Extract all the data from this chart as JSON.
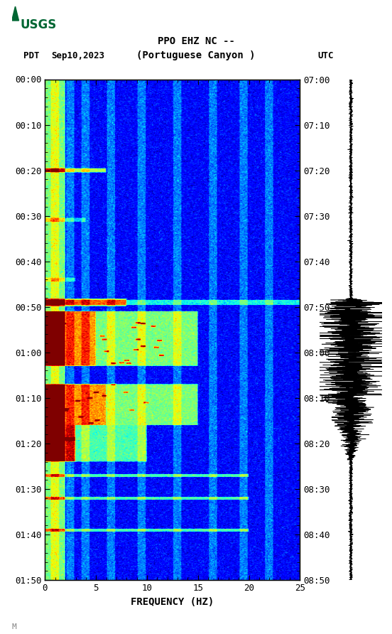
{
  "title_line1": "PPO EHZ NC --",
  "title_line2": "(Portuguese Canyon )",
  "label_pdt": "PDT",
  "label_date": "Sep10,2023",
  "label_utc": "UTC",
  "xlabel": "FREQUENCY (HZ)",
  "freq_min": 0,
  "freq_max": 25,
  "pdt_ticks": [
    "00:00",
    "00:10",
    "00:20",
    "00:30",
    "00:40",
    "00:50",
    "01:00",
    "01:10",
    "01:20",
    "01:30",
    "01:40",
    "01:50"
  ],
  "utc_ticks": [
    "07:00",
    "07:10",
    "07:20",
    "07:30",
    "07:40",
    "07:50",
    "08:00",
    "08:10",
    "08:20",
    "08:30",
    "08:40",
    "08:50"
  ],
  "minute_ticks": [
    0,
    10,
    20,
    30,
    40,
    50,
    60,
    70,
    80,
    90,
    100,
    110
  ],
  "total_minutes": 110,
  "background_color": "#ffffff",
  "usgs_logo_color": "#006633",
  "font_family": "monospace",
  "fig_width": 5.52,
  "fig_height": 8.92,
  "dpi": 100
}
